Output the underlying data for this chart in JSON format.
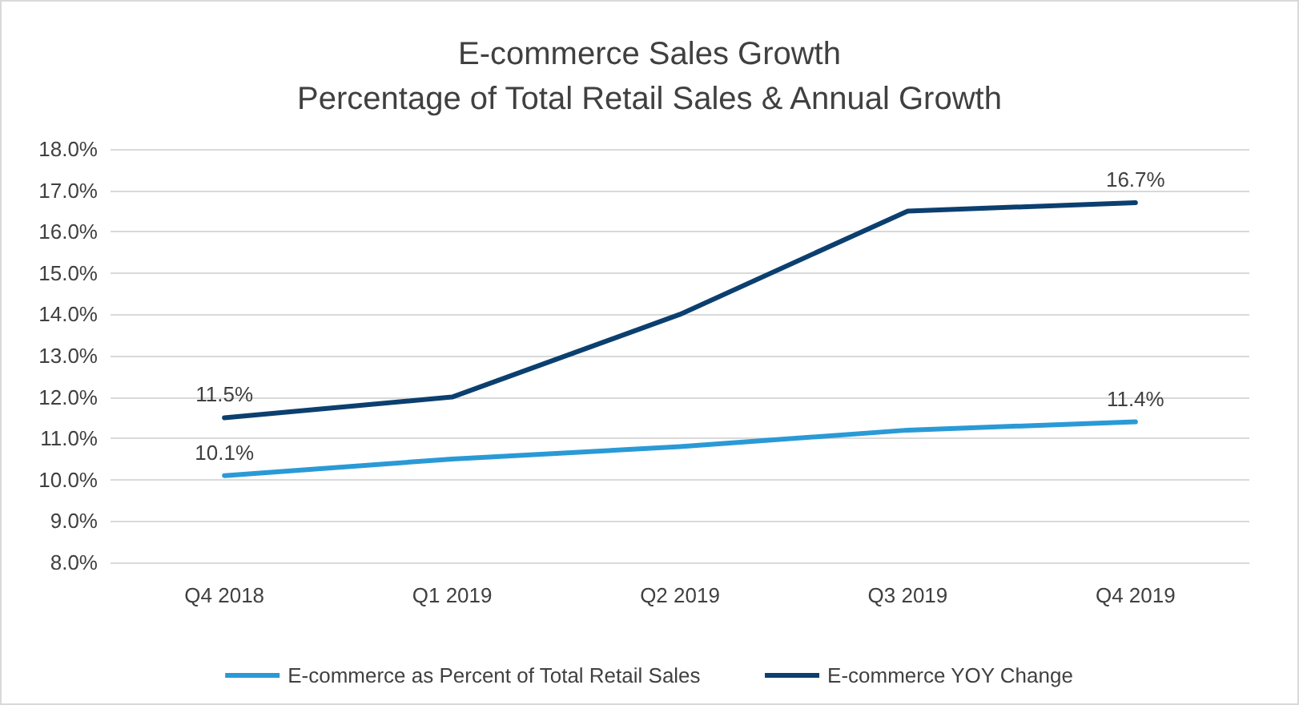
{
  "chart_data": {
    "type": "line",
    "title": "E-commerce Sales Growth",
    "subtitle": "Percentage of Total Retail Sales & Annual Growth",
    "categories": [
      "Q4 2018",
      "Q1 2019",
      "Q2 2019",
      "Q3 2019",
      "Q4 2019"
    ],
    "series": [
      {
        "name": "E-commerce as Percent of Total Retail Sales",
        "color": "#2a9ad6",
        "values": [
          10.1,
          10.5,
          10.8,
          11.2,
          11.4
        ],
        "value_labels": [
          "10.1%",
          null,
          null,
          null,
          "11.4%"
        ]
      },
      {
        "name": "E-commerce YOY Change",
        "color": "#0b3f6f",
        "values": [
          11.5,
          12.0,
          14.0,
          16.5,
          16.7
        ],
        "value_labels": [
          "11.5%",
          null,
          null,
          null,
          "16.7%"
        ]
      }
    ],
    "ylim": [
      8,
      18
    ],
    "yticks": [
      {
        "value": 8,
        "label": "8.0%"
      },
      {
        "value": 9,
        "label": "9.0%"
      },
      {
        "value": 10,
        "label": "10.0%"
      },
      {
        "value": 11,
        "label": "11.0%"
      },
      {
        "value": 12,
        "label": "12.0%"
      },
      {
        "value": 13,
        "label": "13.0%"
      },
      {
        "value": 14,
        "label": "14.0%"
      },
      {
        "value": 15,
        "label": "15.0%"
      },
      {
        "value": 16,
        "label": "16.0%"
      },
      {
        "value": 17,
        "label": "17.0%"
      },
      {
        "value": 18,
        "label": "18.0%"
      }
    ],
    "grid": "y",
    "legend": "bottom",
    "marker": "none",
    "line_style": "solid"
  }
}
